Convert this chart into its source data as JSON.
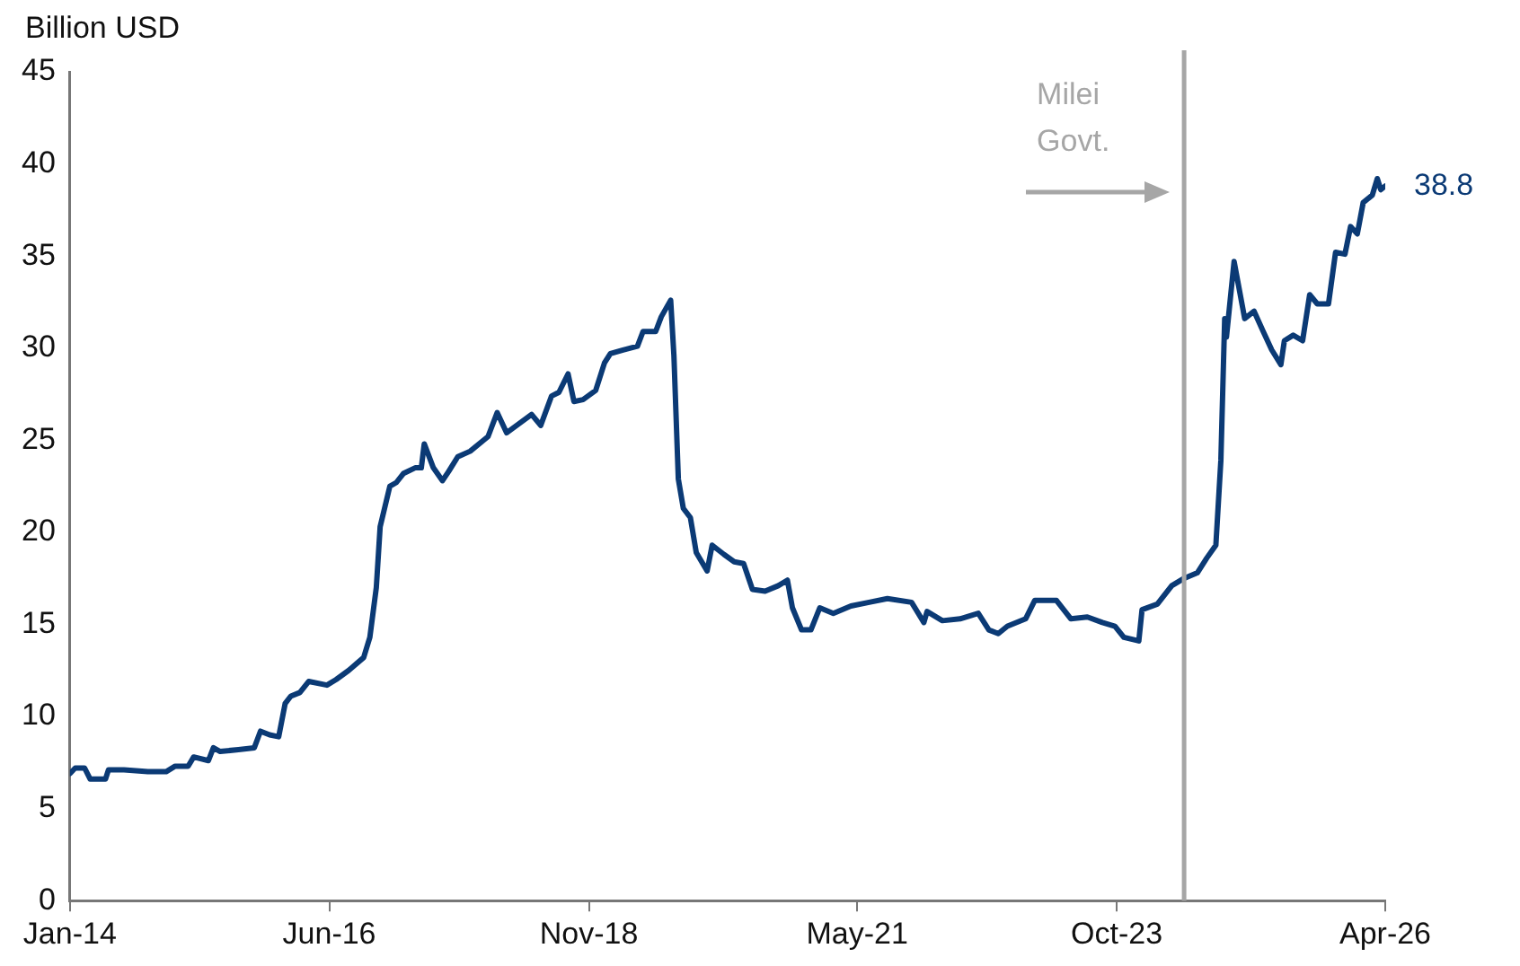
{
  "chart_data": {
    "type": "line",
    "ylabel": "Billion USD",
    "x": [
      "2014-01-01",
      "2014-01-19",
      "2014-02-20",
      "2014-03-11",
      "2014-05-02",
      "2014-05-12",
      "2014-07-04",
      "2014-09-23",
      "2014-11-24",
      "2014-12-25",
      "2015-02-07",
      "2015-02-26",
      "2015-04-17",
      "2015-05-04",
      "2015-05-27",
      "2015-07-28",
      "2015-09-20",
      "2015-10-11",
      "2015-11-11",
      "2015-12-12",
      "2016-01-03",
      "2016-01-22",
      "2016-02-22",
      "2016-03-23",
      "2016-05-24",
      "2016-06-24",
      "2016-08-06",
      "2016-09-26",
      "2016-10-17",
      "2016-11-08",
      "2016-11-21",
      "2016-12-24",
      "2017-01-15",
      "2017-02-09",
      "2017-03-20",
      "2017-04-10",
      "2017-04-20",
      "2017-05-21",
      "2017-06-21",
      "2017-07-12",
      "2017-08-12",
      "2017-09-23",
      "2017-11-23",
      "2017-12-24",
      "2018-01-25",
      "2018-04-20",
      "2018-05-21",
      "2018-06-27",
      "2018-07-22",
      "2018-08-22",
      "2018-09-11",
      "2018-10-12",
      "2018-11-24",
      "2018-12-24",
      "2019-01-13",
      "2019-02-25",
      "2019-04-15",
      "2019-05-04",
      "2019-06-16",
      "2019-07-05",
      "2019-08-06",
      "2019-08-17",
      "2019-09-01",
      "2019-09-18",
      "2019-10-12",
      "2019-11-01",
      "2019-12-08",
      "2019-12-25",
      "2020-02-03",
      "2020-03-09",
      "2020-04-10",
      "2020-05-10",
      "2020-06-22",
      "2020-08-06",
      "2020-09-06",
      "2020-09-23",
      "2020-10-24",
      "2020-11-25",
      "2020-12-25",
      "2021-02-09",
      "2021-04-10",
      "2021-06-11",
      "2021-08-12",
      "2021-11-02",
      "2021-12-14",
      "2021-12-25",
      "2022-02-15",
      "2022-04-16",
      "2022-06-17",
      "2022-07-23",
      "2022-08-24",
      "2022-09-24",
      "2022-11-25",
      "2022-12-26",
      "2023-03-10",
      "2023-04-28",
      "2023-06-23",
      "2023-08-13",
      "2023-09-25",
      "2023-10-25",
      "2023-12-15",
      "2023-12-26",
      "2024-02-16",
      "2024-04-05",
      "2024-05-17",
      "2024-07-01",
      "2024-08-02",
      "2024-09-02",
      "2024-09-19",
      "2024-10-02",
      "2024-10-08",
      "2024-11-03",
      "2024-12-09",
      "2025-01-10",
      "2025-02-10",
      "2025-03-11",
      "2025-04-11",
      "2025-04-23",
      "2025-05-23",
      "2025-06-24",
      "2025-07-18",
      "2025-08-13",
      "2025-09-20",
      "2025-10-14",
      "2025-11-15",
      "2025-12-04",
      "2025-12-27",
      "2026-01-16",
      "2026-02-16",
      "2026-03-05",
      "2026-03-17",
      "2026-04-01"
    ],
    "series": [
      {
        "color": "#0b3a75",
        "values": [
          6.9,
          7.2,
          7.2,
          6.6,
          6.6,
          7.1,
          7.1,
          7.0,
          7.0,
          7.3,
          7.3,
          7.8,
          7.6,
          8.3,
          8.1,
          8.2,
          8.3,
          9.2,
          9.0,
          8.9,
          10.7,
          11.1,
          11.3,
          11.9,
          11.7,
          12.0,
          12.5,
          13.2,
          14.3,
          17.0,
          20.3,
          22.5,
          22.7,
          23.2,
          23.5,
          23.5,
          24.8,
          23.5,
          22.8,
          23.3,
          24.1,
          24.4,
          25.2,
          26.5,
          25.4,
          26.4,
          25.8,
          27.4,
          27.6,
          28.6,
          27.1,
          27.2,
          27.7,
          29.2,
          29.7,
          29.9,
          30.1,
          30.9,
          30.9,
          31.7,
          32.6,
          29.6,
          22.9,
          21.3,
          20.8,
          18.9,
          17.9,
          19.3,
          18.8,
          18.4,
          18.3,
          16.9,
          16.8,
          17.1,
          17.4,
          15.9,
          14.7,
          14.7,
          15.9,
          15.6,
          16.0,
          16.2,
          16.4,
          16.2,
          15.1,
          15.7,
          15.2,
          15.3,
          15.6,
          14.7,
          14.5,
          14.9,
          15.3,
          16.3,
          16.3,
          15.3,
          15.4,
          15.1,
          14.9,
          14.3,
          14.1,
          15.8,
          16.1,
          17.1,
          17.5,
          17.8,
          18.6,
          19.3,
          23.9,
          31.6,
          30.6,
          34.7,
          31.6,
          32.0,
          30.9,
          29.9,
          29.1,
          30.4,
          30.7,
          30.4,
          32.9,
          32.4,
          32.4,
          35.2,
          35.1,
          36.6,
          36.2,
          37.9,
          38.3,
          39.2,
          38.6,
          38.8
        ]
      }
    ],
    "xlim": [
      "2014-01-01",
      "2026-04-01"
    ],
    "xticks": [
      {
        "value": "2014-01",
        "label": "Jan-14"
      },
      {
        "value": "2016-06",
        "label": "Jun-16"
      },
      {
        "value": "2018-11",
        "label": "Nov-18"
      },
      {
        "value": "2021-05",
        "label": "May-21"
      },
      {
        "value": "2023-10",
        "label": "Oct-23"
      },
      {
        "value": "2026-04",
        "label": "Apr-26"
      }
    ],
    "ylim": [
      0,
      45
    ],
    "yticks": [
      0,
      5,
      10,
      15,
      20,
      25,
      30,
      35,
      40,
      45
    ],
    "ref_lines": [
      {
        "axis": "x",
        "value": "2024-05-17",
        "label": "Milei Govt.",
        "color": "#a6a6a6"
      }
    ],
    "annotations": [
      {
        "text": "38.8",
        "x": "2026-04-01",
        "y": 38.8
      }
    ],
    "grid": false,
    "legend": false,
    "marker": "none",
    "line_style": "solid"
  }
}
